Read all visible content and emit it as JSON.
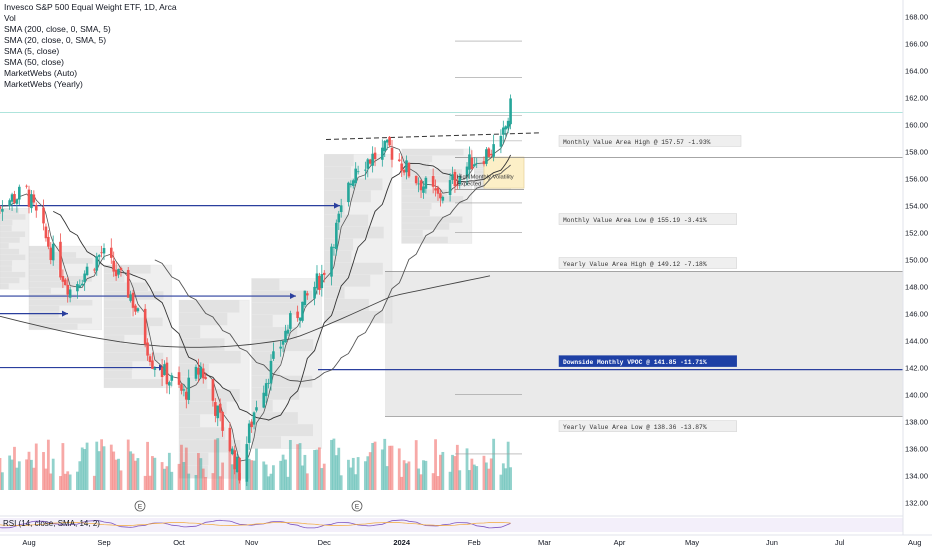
{
  "legend": {
    "title": "Invesco S&P 500 Equal Weight ETF, 1D, Arca",
    "lines": [
      "Vol",
      "SMA (200, close, 0, SMA, 5)",
      "SMA (20, close, 0, SMA, 5)",
      "SMA (5, close)",
      "SMA (50, close)",
      "MarketWebs  (Auto)",
      "MarketWebs  (Yearly)"
    ]
  },
  "rsi_label": "RSI (14, close, SMA, 14, 2)",
  "price_axis": {
    "labels": [
      "168.00",
      "166.00",
      "164.00",
      "162.00",
      "160.00",
      "158.00",
      "156.00",
      "154.00",
      "152.00",
      "150.00",
      "148.00",
      "146.00",
      "144.00",
      "142.00",
      "140.00",
      "138.00",
      "136.00",
      "134.00",
      "132.00"
    ]
  },
  "time_axis": {
    "labels": [
      "Aug",
      "Sep",
      "Oct",
      "Nov",
      "Dec",
      "2024",
      "Feb",
      "Mar",
      "Apr",
      "May",
      "Jun",
      "Jul",
      "Aug"
    ]
  },
  "annotations": {
    "monthly_vah": "Monthly Value Area High @ 157.57  -1.93%",
    "monthly_val": "Monthly Value Area Low @ 155.19  -3.41%",
    "yearly_vah": "Yearly Value Area High @ 149.12  -7.18%",
    "downside_vpoc": "Downside Monthly VPOC @ 141.85  -11.71%",
    "yearly_val": "Yearly Value Area Low @ 138.36  -13.87%",
    "volatility_note": [
      "High Monthly Volatility",
      "Expected"
    ]
  },
  "event_markers": [
    "E",
    "E"
  ],
  "colors": {
    "up": "#26a69a",
    "down": "#ef5350",
    "level": "#2a3f9e",
    "value_area": "#e6e6e6",
    "hilite": "#fcefc7",
    "vpoc_label_bg": "#1e40a5"
  },
  "chart_data": {
    "type": "candlestick",
    "title": "Invesco S&P 500 Equal Weight ETF, 1D, Arca",
    "ylim": [
      131,
      168.5
    ],
    "x_ticks": [
      "Aug",
      "Sep",
      "Oct",
      "Nov",
      "Dec",
      "2024",
      "Feb",
      "Mar",
      "Apr",
      "May",
      "Jun",
      "Jul",
      "Aug"
    ],
    "levels": [
      {
        "label": "Monthly Value Area High",
        "value": 157.57
      },
      {
        "label": "Monthly Value Area Low",
        "value": 155.19
      },
      {
        "label": "Yearly Value Area High",
        "value": 149.12
      },
      {
        "label": "Downside Monthly VPOC",
        "value": 141.85
      },
      {
        "label": "Yearly Value Area Low",
        "value": 138.36
      }
    ],
    "close_key_points": [
      {
        "date": "2023-07-20",
        "close": 154.2
      },
      {
        "date": "2023-07-31",
        "close": 155.0
      },
      {
        "date": "2023-08-08",
        "close": 151.5
      },
      {
        "date": "2023-08-18",
        "close": 147.8
      },
      {
        "date": "2023-08-31",
        "close": 150.5
      },
      {
        "date": "2023-09-12",
        "close": 147.4
      },
      {
        "date": "2023-09-21",
        "close": 142.5
      },
      {
        "date": "2023-10-04",
        "close": 140.0
      },
      {
        "date": "2023-10-11",
        "close": 142.0
      },
      {
        "date": "2023-10-27",
        "close": 134.2
      },
      {
        "date": "2023-11-03",
        "close": 139.5
      },
      {
        "date": "2023-11-16",
        "close": 145.0
      },
      {
        "date": "2023-11-30",
        "close": 148.8
      },
      {
        "date": "2023-12-14",
        "close": 157.0
      },
      {
        "date": "2023-12-28",
        "close": 158.2
      },
      {
        "date": "2024-01-05",
        "close": 156.5
      },
      {
        "date": "2024-01-17",
        "close": 154.6
      },
      {
        "date": "2024-01-31",
        "close": 157.3
      },
      {
        "date": "2024-02-12",
        "close": 158.5
      },
      {
        "date": "2024-02-16",
        "close": 161.2
      }
    ],
    "rsi": {
      "length": 14,
      "smoothing": "SMA 14"
    }
  }
}
